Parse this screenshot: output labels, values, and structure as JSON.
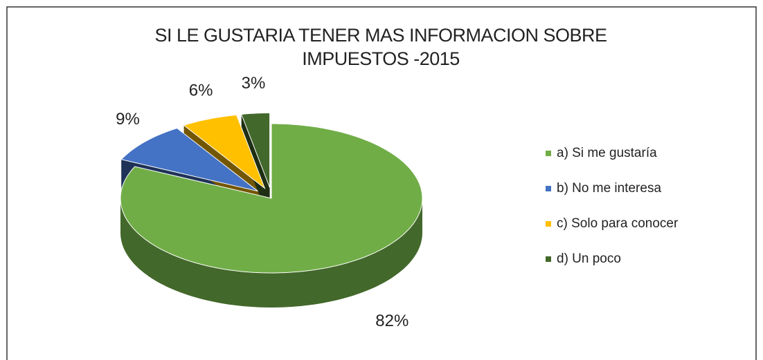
{
  "chart_data": {
    "type": "pie3d",
    "title": "SI LE GUSTARIA TENER MAS INFORMACION  SOBRE IMPUESTOS -2015",
    "categories": [
      "a) Si me gustaría",
      "b) No me interesa",
      "c) Solo para conocer",
      "d) Un poco"
    ],
    "values": [
      82,
      9,
      6,
      3
    ],
    "value_labels": [
      "82%",
      "9%",
      "6%",
      "3%"
    ],
    "colors": [
      "#70ad47",
      "#4472c4",
      "#ffc000",
      "#43682b"
    ],
    "legend": "right"
  }
}
